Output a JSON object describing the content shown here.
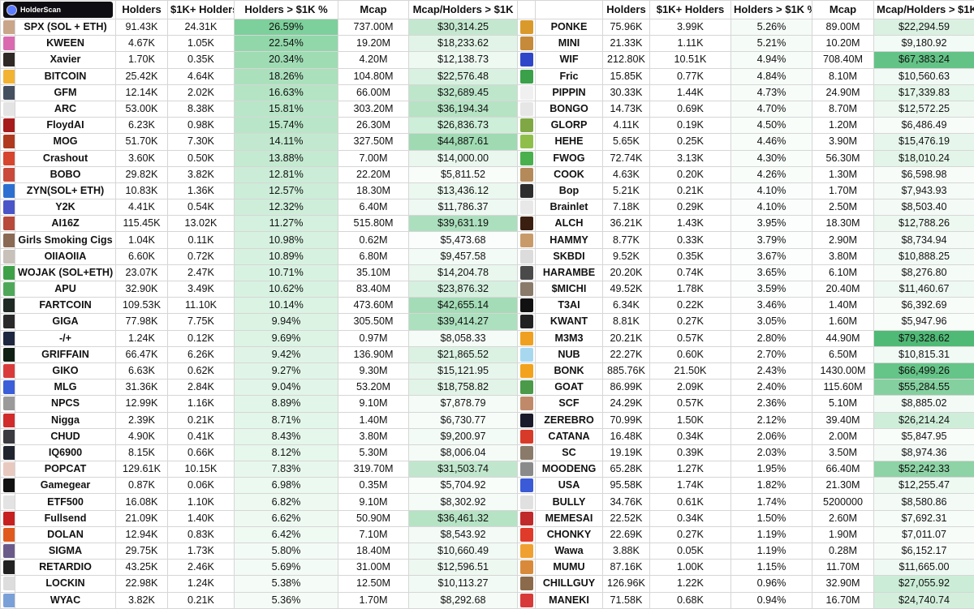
{
  "brand": {
    "logo_text": "HolderScan"
  },
  "headers": {
    "holders": "Holders",
    "k_holders": "$1K+ Holders",
    "pct": "Holders > $1K %",
    "mcap": "Mcap",
    "ratio": "Mcap/Holders > $1K"
  },
  "left_rows": [
    {
      "name": "SPX (SOL + ETH)",
      "holders": "91.43K",
      "k": "24.31K",
      "pct": "26.59%",
      "mcap": "737.00M",
      "ratio": "$30,314.25",
      "pct_bg": "#7dcf9b",
      "ratio_bg": "#c3e8cf",
      "icon": "#c9a58a"
    },
    {
      "name": "KWEEN",
      "holders": "4.67K",
      "k": "1.05K",
      "pct": "22.54%",
      "mcap": "19.20M",
      "ratio": "$18,233.62",
      "pct_bg": "#92d7aa",
      "ratio_bg": "#e2f4e8",
      "icon": "#d96ab0"
    },
    {
      "name": "Xavier",
      "holders": "1.70K",
      "k": "0.35K",
      "pct": "20.34%",
      "mcap": "4.20M",
      "ratio": "$12,138.73",
      "pct_bg": "#9fdcb4",
      "ratio_bg": "#eef9f2",
      "icon": "#2f2a26"
    },
    {
      "name": "BITCOIN",
      "holders": "25.42K",
      "k": "4.64K",
      "pct": "18.26%",
      "mcap": "104.80M",
      "ratio": "$22,576.48",
      "pct_bg": "#abe0bd",
      "ratio_bg": "#d9f1e1",
      "icon": "#f2b232"
    },
    {
      "name": "GFM",
      "holders": "12.14K",
      "k": "2.02K",
      "pct": "16.63%",
      "mcap": "66.00M",
      "ratio": "$32,689.45",
      "pct_bg": "#b4e4c4",
      "ratio_bg": "#bde6cb",
      "icon": "#445060"
    },
    {
      "name": "ARC",
      "holders": "53.00K",
      "k": "8.38K",
      "pct": "15.81%",
      "mcap": "303.20M",
      "ratio": "$36,194.34",
      "pct_bg": "#b9e6c8",
      "ratio_bg": "#b5e3c4",
      "icon": "#e4e4e4"
    },
    {
      "name": "FloydAI",
      "holders": "6.23K",
      "k": "0.98K",
      "pct": "15.74%",
      "mcap": "26.30M",
      "ratio": "$26,836.73",
      "pct_bg": "#b9e6c8",
      "ratio_bg": "#cdeed8",
      "icon": "#a61b1b"
    },
    {
      "name": "MOG",
      "holders": "51.70K",
      "k": "7.30K",
      "pct": "14.11%",
      "mcap": "327.50M",
      "ratio": "$44,887.61",
      "pct_bg": "#c2e9cf",
      "ratio_bg": "#9fdab3",
      "icon": "#b03a20"
    },
    {
      "name": "Crashout",
      "holders": "3.60K",
      "k": "0.50K",
      "pct": "13.88%",
      "mcap": "7.00M",
      "ratio": "$14,000.00",
      "pct_bg": "#c4ead1",
      "ratio_bg": "#e9f7ee",
      "icon": "#d6452e"
    },
    {
      "name": "BOBO",
      "holders": "29.82K",
      "k": "3.82K",
      "pct": "12.81%",
      "mcap": "22.20M",
      "ratio": "$5,811.52",
      "pct_bg": "#cbedd7",
      "ratio_bg": "#f9fdfa",
      "icon": "#c94a3a"
    },
    {
      "name": "ZYN(SOL+ ETH)",
      "holders": "10.83K",
      "k": "1.36K",
      "pct": "12.57%",
      "mcap": "18.30M",
      "ratio": "$13,436.12",
      "pct_bg": "#ccedd8",
      "ratio_bg": "#ebf8ef",
      "icon": "#2c6fd1"
    },
    {
      "name": "Y2K",
      "holders": "4.41K",
      "k": "0.54K",
      "pct": "12.32%",
      "mcap": "6.40M",
      "ratio": "$11,786.37",
      "pct_bg": "#ceeeda",
      "ratio_bg": "#eff9f3",
      "icon": "#4a55c8"
    },
    {
      "name": "AI16Z",
      "holders": "115.45K",
      "k": "13.02K",
      "pct": "11.27%",
      "mcap": "515.80M",
      "ratio": "$39,631.19",
      "pct_bg": "#d4f0de",
      "ratio_bg": "#acdfbe",
      "icon": "#b84a3c"
    },
    {
      "name": "Girls Smoking Cigs",
      "holders": "1.04K",
      "k": "0.11K",
      "pct": "10.98%",
      "mcap": "0.62M",
      "ratio": "$5,473.68",
      "pct_bg": "#d6f1df",
      "ratio_bg": "#fafdfb",
      "icon": "#8a6a55"
    },
    {
      "name": "OIIAOIIA",
      "holders": "6.60K",
      "k": "0.72K",
      "pct": "10.89%",
      "mcap": "6.80M",
      "ratio": "$9,457.58",
      "pct_bg": "#d7f1e0",
      "ratio_bg": "#f3fbf6",
      "icon": "#c7c1b9"
    },
    {
      "name": "WOJAK (SOL+ETH)",
      "holders": "23.07K",
      "k": "2.47K",
      "pct": "10.71%",
      "mcap": "35.10M",
      "ratio": "$14,204.78",
      "pct_bg": "#d8f2e1",
      "ratio_bg": "#e9f7ee",
      "icon": "#3fa04a"
    },
    {
      "name": "APU",
      "holders": "32.90K",
      "k": "3.49K",
      "pct": "10.62%",
      "mcap": "83.40M",
      "ratio": "$23,876.32",
      "pct_bg": "#d8f2e1",
      "ratio_bg": "#d6f0df",
      "icon": "#4fa85a"
    },
    {
      "name": "FARTCOIN",
      "holders": "109.53K",
      "k": "11.10K",
      "pct": "10.14%",
      "mcap": "473.60M",
      "ratio": "$42,655.14",
      "pct_bg": "#dbf3e3",
      "ratio_bg": "#a4dcb7",
      "icon": "#1f2a24"
    },
    {
      "name": "GIGA",
      "holders": "77.98K",
      "k": "7.75K",
      "pct": "9.94%",
      "mcap": "305.50M",
      "ratio": "$39,414.27",
      "pct_bg": "#dcf3e4",
      "ratio_bg": "#ace0be",
      "icon": "#2a2a2a"
    },
    {
      "name": "-/+",
      "holders": "1.24K",
      "k": "0.12K",
      "pct": "9.69%",
      "mcap": "0.97M",
      "ratio": "$8,058.33",
      "pct_bg": "#ddf4e5",
      "ratio_bg": "#f5fbf7",
      "icon": "#1d2740"
    },
    {
      "name": "GRIFFAIN",
      "holders": "66.47K",
      "k": "6.26K",
      "pct": "9.42%",
      "mcap": "136.90M",
      "ratio": "$21,865.52",
      "pct_bg": "#dff4e6",
      "ratio_bg": "#dbf2e3",
      "icon": "#0f1f14"
    },
    {
      "name": "GIKO",
      "holders": "6.63K",
      "k": "0.62K",
      "pct": "9.27%",
      "mcap": "9.30M",
      "ratio": "$15,121.95",
      "pct_bg": "#e0f5e7",
      "ratio_bg": "#e7f6ec",
      "icon": "#d93b3b"
    },
    {
      "name": "MLG",
      "holders": "31.36K",
      "k": "2.84K",
      "pct": "9.04%",
      "mcap": "53.20M",
      "ratio": "$18,758.82",
      "pct_bg": "#e1f5e8",
      "ratio_bg": "#e1f4e7",
      "icon": "#3b5fd9"
    },
    {
      "name": "NPCS",
      "holders": "12.99K",
      "k": "1.16K",
      "pct": "8.89%",
      "mcap": "9.10M",
      "ratio": "$7,878.79",
      "pct_bg": "#e2f5e9",
      "ratio_bg": "#f5fbf7",
      "icon": "#9a9a9a"
    },
    {
      "name": "Nigga",
      "holders": "2.39K",
      "k": "0.21K",
      "pct": "8.71%",
      "mcap": "1.40M",
      "ratio": "$6,730.77",
      "pct_bg": "#e3f6ea",
      "ratio_bg": "#f7fcf9",
      "icon": "#d12b2b"
    },
    {
      "name": "CHUD",
      "holders": "4.90K",
      "k": "0.41K",
      "pct": "8.43%",
      "mcap": "3.80M",
      "ratio": "$9,200.97",
      "pct_bg": "#e5f6eb",
      "ratio_bg": "#f3fbf6",
      "icon": "#3a3a40"
    },
    {
      "name": "IQ6900",
      "holders": "8.15K",
      "k": "0.66K",
      "pct": "8.12%",
      "mcap": "5.30M",
      "ratio": "$8,006.04",
      "pct_bg": "#e6f7ec",
      "ratio_bg": "#f5fbf7",
      "icon": "#20242e"
    },
    {
      "name": "POPCAT",
      "holders": "129.61K",
      "k": "10.15K",
      "pct": "7.83%",
      "mcap": "319.70M",
      "ratio": "$31,503.74",
      "pct_bg": "#e8f7ed",
      "ratio_bg": "#c0e7cd",
      "icon": "#e8c9c0"
    },
    {
      "name": "Gamegear",
      "holders": "0.87K",
      "k": "0.06K",
      "pct": "6.98%",
      "mcap": "0.35M",
      "ratio": "$5,704.92",
      "pct_bg": "#ecf9f0",
      "ratio_bg": "#f9fdfa",
      "icon": "#111111"
    },
    {
      "name": "ETF500",
      "holders": "16.08K",
      "k": "1.10K",
      "pct": "6.82%",
      "mcap": "9.10M",
      "ratio": "$8,302.92",
      "pct_bg": "#edf9f1",
      "ratio_bg": "#f5fbf7",
      "icon": "#e3e3e3"
    },
    {
      "name": "Fullsend",
      "holders": "21.09K",
      "k": "1.40K",
      "pct": "6.62%",
      "mcap": "50.90M",
      "ratio": "$36,461.32",
      "pct_bg": "#eef9f2",
      "ratio_bg": "#b5e3c4",
      "icon": "#c72020"
    },
    {
      "name": "DOLAN",
      "holders": "12.94K",
      "k": "0.83K",
      "pct": "6.42%",
      "mcap": "7.10M",
      "ratio": "$8,543.92",
      "pct_bg": "#effaf3",
      "ratio_bg": "#f4fbf7",
      "icon": "#e05a1e"
    },
    {
      "name": "SIGMA",
      "holders": "29.75K",
      "k": "1.73K",
      "pct": "5.80%",
      "mcap": "18.40M",
      "ratio": "$10,660.49",
      "pct_bg": "#f3fbf6",
      "ratio_bg": "#f1faf4",
      "icon": "#6a5a8a"
    },
    {
      "name": "RETARDIO",
      "holders": "43.25K",
      "k": "2.46K",
      "pct": "5.69%",
      "mcap": "31.00M",
      "ratio": "$12,596.51",
      "pct_bg": "#f3fbf6",
      "ratio_bg": "#edf8f1",
      "icon": "#222222"
    },
    {
      "name": "LOCKIN",
      "holders": "22.98K",
      "k": "1.24K",
      "pct": "5.38%",
      "mcap": "12.50M",
      "ratio": "$10,113.27",
      "pct_bg": "#f5fbf7",
      "ratio_bg": "#f2faf5",
      "icon": "#dddddd"
    },
    {
      "name": "WYAC",
      "holders": "3.82K",
      "k": "0.21K",
      "pct": "5.36%",
      "mcap": "1.70M",
      "ratio": "$8,292.68",
      "pct_bg": "#f5fbf7",
      "ratio_bg": "#f5fbf7",
      "icon": "#7aa0d8"
    }
  ],
  "right_rows": [
    {
      "name": "PONKE",
      "holders": "75.96K",
      "k": "3.99K",
      "pct": "5.26%",
      "mcap": "89.00M",
      "ratio": "$22,294.59",
      "pct_bg": "#f5fbf7",
      "ratio_bg": "#daf1e2",
      "icon": "#d99a2b"
    },
    {
      "name": "MINI",
      "holders": "21.33K",
      "k": "1.11K",
      "pct": "5.21%",
      "mcap": "10.20M",
      "ratio": "$9,180.92",
      "pct_bg": "#f5fbf7",
      "ratio_bg": "#f3fbf6",
      "icon": "#c58a3a"
    },
    {
      "name": "WIF",
      "holders": "212.80K",
      "k": "10.51K",
      "pct": "4.94%",
      "mcap": "708.40M",
      "ratio": "$67,383.24",
      "pct_bg": "#f6fcf8",
      "ratio_bg": "#63c386",
      "icon": "#3046c9"
    },
    {
      "name": "Fric",
      "holders": "15.85K",
      "k": "0.77K",
      "pct": "4.84%",
      "mcap": "8.10M",
      "ratio": "$10,560.63",
      "pct_bg": "#f7fcf9",
      "ratio_bg": "#f1faf4",
      "icon": "#3aa04a"
    },
    {
      "name": "PIPPIN",
      "holders": "30.33K",
      "k": "1.44K",
      "pct": "4.73%",
      "mcap": "24.90M",
      "ratio": "$17,339.83",
      "pct_bg": "#f7fcf9",
      "ratio_bg": "#e4f5e9",
      "icon": "#f0f0f0"
    },
    {
      "name": "BONGO",
      "holders": "14.73K",
      "k": "0.69K",
      "pct": "4.70%",
      "mcap": "8.70M",
      "ratio": "$12,572.25",
      "pct_bg": "#f7fcf9",
      "ratio_bg": "#edf8f1",
      "icon": "#e6e6e6"
    },
    {
      "name": "GLORP",
      "holders": "4.11K",
      "k": "0.19K",
      "pct": "4.50%",
      "mcap": "1.20M",
      "ratio": "$6,486.49",
      "pct_bg": "#f8fdf9",
      "ratio_bg": "#f8fcf9",
      "icon": "#7fa844"
    },
    {
      "name": "HEHE",
      "holders": "5.65K",
      "k": "0.25K",
      "pct": "4.46%",
      "mcap": "3.90M",
      "ratio": "$15,476.19",
      "pct_bg": "#f8fdf9",
      "ratio_bg": "#e7f6ec",
      "icon": "#8fbf4a"
    },
    {
      "name": "FWOG",
      "holders": "72.74K",
      "k": "3.13K",
      "pct": "4.30%",
      "mcap": "56.30M",
      "ratio": "$18,010.24",
      "pct_bg": "#f9fdfa",
      "ratio_bg": "#e3f5e8",
      "icon": "#4ab04e"
    },
    {
      "name": "COOK",
      "holders": "4.63K",
      "k": "0.20K",
      "pct": "4.26%",
      "mcap": "1.30M",
      "ratio": "$6,598.98",
      "pct_bg": "#f9fdfa",
      "ratio_bg": "#f8fcf9",
      "icon": "#b58a5a"
    },
    {
      "name": "Bop",
      "holders": "5.21K",
      "k": "0.21K",
      "pct": "4.10%",
      "mcap": "1.70M",
      "ratio": "$7,943.93",
      "pct_bg": "#fafdfb",
      "ratio_bg": "#f5fbf7",
      "icon": "#2d2d2d"
    },
    {
      "name": "Brainlet",
      "holders": "7.18K",
      "k": "0.29K",
      "pct": "4.10%",
      "mcap": "2.50M",
      "ratio": "$8,503.40",
      "pct_bg": "#fafdfb",
      "ratio_bg": "#f4fbf7",
      "icon": "#e8e8e8"
    },
    {
      "name": "ALCH",
      "holders": "36.21K",
      "k": "1.43K",
      "pct": "3.95%",
      "mcap": "18.30M",
      "ratio": "$12,788.26",
      "pct_bg": "#fbfefc",
      "ratio_bg": "#ecf8f0",
      "icon": "#3a1f10"
    },
    {
      "name": "HAMMY",
      "holders": "8.77K",
      "k": "0.33K",
      "pct": "3.79%",
      "mcap": "2.90M",
      "ratio": "$8,734.94",
      "pct_bg": "#fbfefc",
      "ratio_bg": "#f4fbf7",
      "icon": "#c89a6a"
    },
    {
      "name": "SKBDI",
      "holders": "9.52K",
      "k": "0.35K",
      "pct": "3.67%",
      "mcap": "3.80M",
      "ratio": "$10,888.25",
      "pct_bg": "#fcfefd",
      "ratio_bg": "#f1faf4",
      "icon": "#dcdcdc"
    },
    {
      "name": "HARAMBE",
      "holders": "20.20K",
      "k": "0.74K",
      "pct": "3.65%",
      "mcap": "6.10M",
      "ratio": "$8,276.80",
      "pct_bg": "#fcfefd",
      "ratio_bg": "#f5fbf7",
      "icon": "#4a4a4a"
    },
    {
      "name": "$MICHI",
      "holders": "49.52K",
      "k": "1.78K",
      "pct": "3.59%",
      "mcap": "20.40M",
      "ratio": "$11,460.67",
      "pct_bg": "#fcfefd",
      "ratio_bg": "#eff9f3",
      "icon": "#8a7a6a"
    },
    {
      "name": "T3AI",
      "holders": "6.34K",
      "k": "0.22K",
      "pct": "3.46%",
      "mcap": "1.40M",
      "ratio": "$6,392.69",
      "pct_bg": "#fdfefd",
      "ratio_bg": "#f8fcf9",
      "icon": "#111111"
    },
    {
      "name": "KWANT",
      "holders": "8.81K",
      "k": "0.27K",
      "pct": "3.05%",
      "mcap": "1.60M",
      "ratio": "$5,947.96",
      "pct_bg": "#fefffe",
      "ratio_bg": "#f9fdfa",
      "icon": "#222222"
    },
    {
      "name": "M3M3",
      "holders": "20.21K",
      "k": "0.57K",
      "pct": "2.80%",
      "mcap": "44.90M",
      "ratio": "$79,328.62",
      "pct_bg": "#ffffff",
      "ratio_bg": "#4fba76",
      "icon": "#f0a020"
    },
    {
      "name": "NUB",
      "holders": "22.27K",
      "k": "0.60K",
      "pct": "2.70%",
      "mcap": "6.50M",
      "ratio": "$10,815.31",
      "pct_bg": "#ffffff",
      "ratio_bg": "#f1faf4",
      "icon": "#a8d8f0"
    },
    {
      "name": "BONK",
      "holders": "885.76K",
      "k": "21.50K",
      "pct": "2.43%",
      "mcap": "1430.00M",
      "ratio": "$66,499.26",
      "pct_bg": "#ffffff",
      "ratio_bg": "#65c487",
      "icon": "#f2a21c"
    },
    {
      "name": "GOAT",
      "holders": "86.99K",
      "k": "2.09K",
      "pct": "2.40%",
      "mcap": "115.60M",
      "ratio": "$55,284.55",
      "pct_bg": "#ffffff",
      "ratio_bg": "#85d09f",
      "icon": "#4a9a4a"
    },
    {
      "name": "SCF",
      "holders": "24.29K",
      "k": "0.57K",
      "pct": "2.36%",
      "mcap": "5.10M",
      "ratio": "$8,885.02",
      "pct_bg": "#ffffff",
      "ratio_bg": "#f4fbf7",
      "icon": "#c08a6a"
    },
    {
      "name": "ZEREBRO",
      "holders": "70.99K",
      "k": "1.50K",
      "pct": "2.12%",
      "mcap": "39.40M",
      "ratio": "$26,214.24",
      "pct_bg": "#ffffff",
      "ratio_bg": "#cfeed9",
      "icon": "#1a1a2a"
    },
    {
      "name": "CATANA",
      "holders": "16.48K",
      "k": "0.34K",
      "pct": "2.06%",
      "mcap": "2.00M",
      "ratio": "$5,847.95",
      "pct_bg": "#ffffff",
      "ratio_bg": "#f9fdfa",
      "icon": "#d83a2a"
    },
    {
      "name": "SC",
      "holders": "19.19K",
      "k": "0.39K",
      "pct": "2.03%",
      "mcap": "3.50M",
      "ratio": "$8,974.36",
      "pct_bg": "#ffffff",
      "ratio_bg": "#f4fbf7",
      "icon": "#8a7a6a"
    },
    {
      "name": "MOODENG",
      "holders": "65.28K",
      "k": "1.27K",
      "pct": "1.95%",
      "mcap": "66.40M",
      "ratio": "$52,242.33",
      "pct_bg": "#ffffff",
      "ratio_bg": "#8dd3a5",
      "icon": "#8a8a8a"
    },
    {
      "name": "USA",
      "holders": "95.58K",
      "k": "1.74K",
      "pct": "1.82%",
      "mcap": "21.30M",
      "ratio": "$12,255.47",
      "pct_bg": "#ffffff",
      "ratio_bg": "#eef9f2",
      "icon": "#3a5ad8"
    },
    {
      "name": "BULLY",
      "holders": "34.76K",
      "k": "0.61K",
      "pct": "1.74%",
      "mcap": "5200000",
      "ratio": "$8,580.86",
      "pct_bg": "#ffffff",
      "ratio_bg": "#f4fbf7",
      "icon": "#e0e0e0"
    },
    {
      "name": "MEMESAI",
      "holders": "22.52K",
      "k": "0.34K",
      "pct": "1.50%",
      "mcap": "2.60M",
      "ratio": "$7,692.31",
      "pct_bg": "#ffffff",
      "ratio_bg": "#f6fcf8",
      "icon": "#c02a2a"
    },
    {
      "name": "CHONKY",
      "holders": "22.69K",
      "k": "0.27K",
      "pct": "1.19%",
      "mcap": "1.90M",
      "ratio": "$7,011.07",
      "pct_bg": "#ffffff",
      "ratio_bg": "#f7fcf9",
      "icon": "#e03a2a"
    },
    {
      "name": "Wawa",
      "holders": "3.88K",
      "k": "0.05K",
      "pct": "1.19%",
      "mcap": "0.28M",
      "ratio": "$6,152.17",
      "pct_bg": "#ffffff",
      "ratio_bg": "#f8fcf9",
      "icon": "#f0a030"
    },
    {
      "name": "MUMU",
      "holders": "87.16K",
      "k": "1.00K",
      "pct": "1.15%",
      "mcap": "11.70M",
      "ratio": "$11,665.00",
      "pct_bg": "#ffffff",
      "ratio_bg": "#eff9f3",
      "icon": "#d88a3a"
    },
    {
      "name": "CHILLGUY",
      "holders": "126.96K",
      "k": "1.22K",
      "pct": "0.96%",
      "mcap": "32.90M",
      "ratio": "$27,055.92",
      "pct_bg": "#ffffff",
      "ratio_bg": "#cbedd7",
      "icon": "#8a6a4a"
    },
    {
      "name": "MANEKI",
      "holders": "71.58K",
      "k": "0.68K",
      "pct": "0.94%",
      "mcap": "16.70M",
      "ratio": "$24,740.74",
      "pct_bg": "#ffffff",
      "ratio_bg": "#d3efdc",
      "icon": "#d83a3a"
    }
  ]
}
